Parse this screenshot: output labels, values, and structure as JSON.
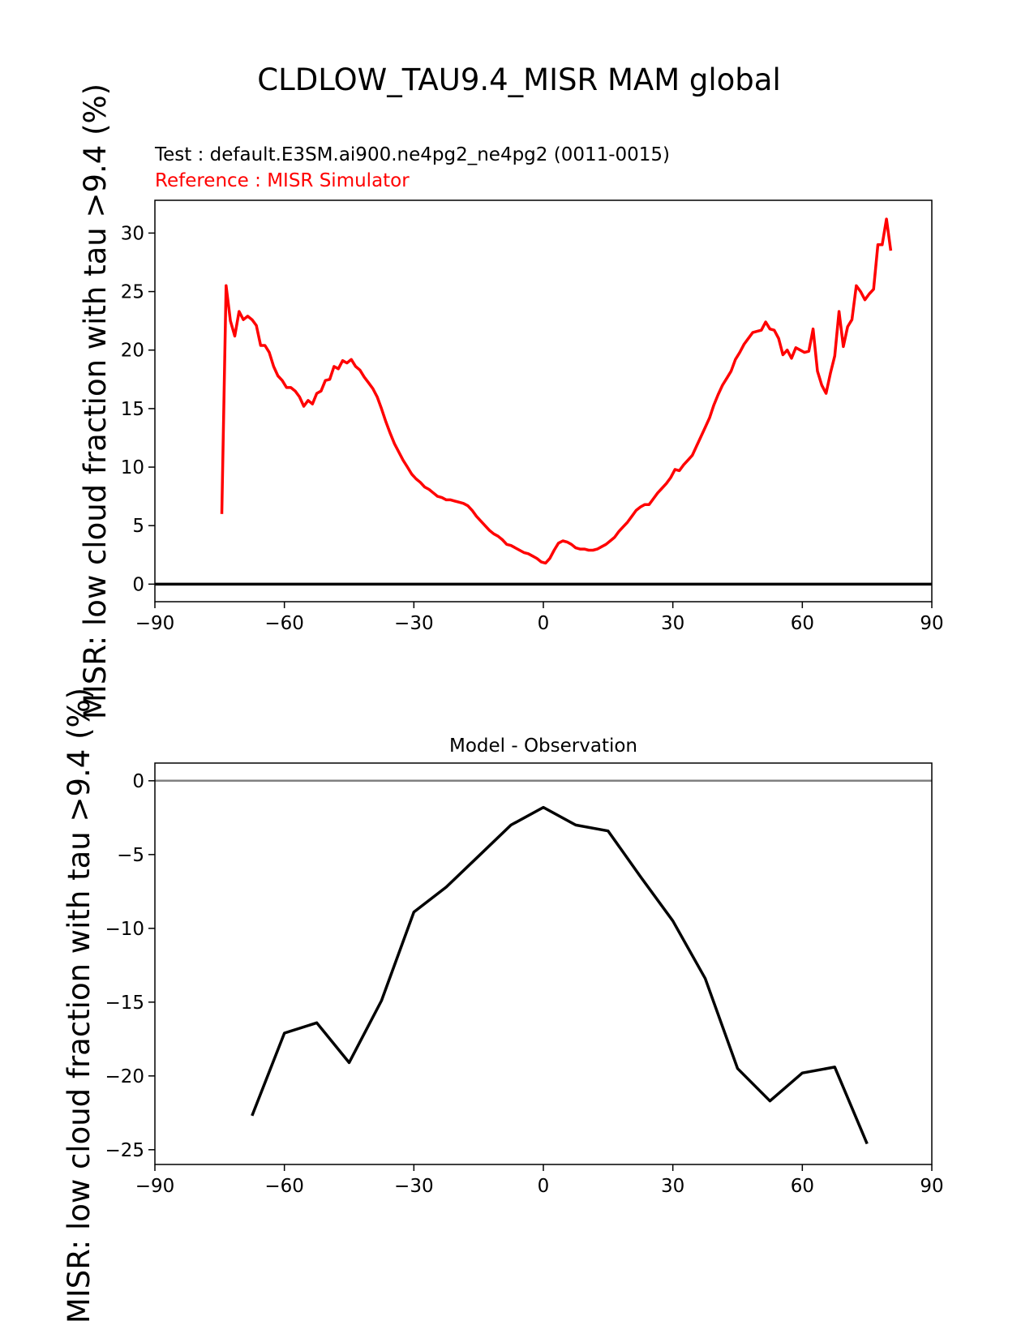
{
  "figure_title": "CLDLOW_TAU9.4_MISR MAM global",
  "test_label": "Test : default.E3SM.ai900.ne4pg2_ne4pg2 (0011-0015)",
  "reference_label": "Reference : MISR Simulator",
  "colors": {
    "reference": "#ff0000",
    "difference": "#000000",
    "zero_line_top": "#000000",
    "zero_line_bottom": "#808080"
  },
  "chart_data": [
    {
      "type": "line",
      "title": "",
      "ylabel": "MISR: low cloud fraction with tau >9.4 (%)",
      "xlabel": "",
      "xlim": [
        -90,
        90
      ],
      "ylim": [
        -1.5,
        32.8
      ],
      "xticks": [
        -90,
        -60,
        -30,
        0,
        30,
        60,
        90
      ],
      "xtick_labels": [
        "−90",
        "−60",
        "−30",
        "0",
        "30",
        "60",
        "90"
      ],
      "yticks": [
        0,
        5,
        10,
        15,
        20,
        25,
        30
      ],
      "ytick_labels": [
        "0",
        "5",
        "10",
        "15",
        "20",
        "25",
        "30"
      ],
      "series": [
        {
          "name": "Reference : MISR Simulator",
          "color": "#ff0000",
          "x": [
            -74.5,
            -73.5,
            -72.5,
            -71.5,
            -70.5,
            -69.5,
            -68.5,
            -67.5,
            -66.5,
            -65.5,
            -64.5,
            -63.5,
            -62.5,
            -61.5,
            -60.5,
            -59.5,
            -58.5,
            -57.5,
            -56.5,
            -55.5,
            -54.5,
            -53.5,
            -52.5,
            -51.5,
            -50.5,
            -49.5,
            -48.5,
            -47.5,
            -46.5,
            -45.5,
            -44.5,
            -43.5,
            -42.5,
            -41.5,
            -40.5,
            -39.5,
            -38.5,
            -37.5,
            -36.5,
            -35.5,
            -34.5,
            -33.5,
            -32.5,
            -31.5,
            -30.5,
            -29.5,
            -28.5,
            -27.5,
            -26.5,
            -25.5,
            -24.5,
            -23.5,
            -22.5,
            -21.5,
            -20.5,
            -19.5,
            -18.5,
            -17.5,
            -16.5,
            -15.5,
            -14.5,
            -13.5,
            -12.5,
            -11.5,
            -10.5,
            -9.5,
            -8.5,
            -7.5,
            -6.5,
            -5.5,
            -4.5,
            -3.5,
            -2.5,
            -1.5,
            -0.5,
            0.5,
            1.5,
            2.5,
            3.5,
            4.5,
            5.5,
            6.5,
            7.5,
            8.5,
            9.5,
            10.5,
            11.5,
            12.5,
            13.5,
            14.5,
            15.5,
            16.5,
            17.5,
            18.5,
            19.5,
            20.5,
            21.5,
            22.5,
            23.5,
            24.5,
            25.5,
            26.5,
            27.5,
            28.5,
            29.5,
            30.5,
            31.5,
            32.5,
            33.5,
            34.5,
            35.5,
            36.5,
            37.5,
            38.5,
            39.5,
            40.5,
            41.5,
            42.5,
            43.5,
            44.5,
            45.5,
            46.5,
            47.5,
            48.5,
            49.5,
            50.5,
            51.5,
            52.5,
            53.5,
            54.5,
            55.5,
            56.5,
            57.5,
            58.5,
            59.5,
            60.5,
            61.5,
            62.5,
            63.5,
            64.5,
            65.5,
            66.5,
            67.5,
            68.5,
            69.5,
            70.5,
            71.5,
            72.5,
            73.5,
            74.5,
            75.5,
            76.5,
            77.5,
            78.5,
            79.5,
            80.5
          ],
          "values": [
            6.0,
            25.5,
            22.5,
            21.2,
            23.3,
            22.6,
            22.9,
            22.6,
            22.1,
            20.4,
            20.4,
            19.8,
            18.6,
            17.8,
            17.4,
            16.8,
            16.8,
            16.5,
            16.0,
            15.2,
            15.7,
            15.4,
            16.3,
            16.5,
            17.4,
            17.5,
            18.6,
            18.4,
            19.1,
            18.9,
            19.2,
            18.6,
            18.3,
            17.7,
            17.2,
            16.7,
            16.0,
            15.0,
            13.9,
            12.9,
            12.0,
            11.3,
            10.6,
            10.0,
            9.4,
            9.0,
            8.7,
            8.3,
            8.1,
            7.8,
            7.5,
            7.4,
            7.2,
            7.2,
            7.1,
            7.0,
            6.9,
            6.7,
            6.3,
            5.8,
            5.4,
            5.0,
            4.6,
            4.3,
            4.1,
            3.8,
            3.4,
            3.3,
            3.1,
            2.9,
            2.7,
            2.6,
            2.4,
            2.2,
            1.9,
            1.8,
            2.2,
            2.9,
            3.5,
            3.7,
            3.6,
            3.4,
            3.1,
            3.0,
            3.0,
            2.9,
            2.9,
            3.0,
            3.2,
            3.4,
            3.7,
            4.0,
            4.5,
            4.9,
            5.3,
            5.8,
            6.3,
            6.6,
            6.8,
            6.8,
            7.3,
            7.8,
            8.2,
            8.6,
            9.1,
            9.8,
            9.7,
            10.2,
            10.6,
            11.0,
            11.8,
            12.6,
            13.4,
            14.2,
            15.3,
            16.2,
            17.0,
            17.6,
            18.2,
            19.2,
            19.8,
            20.5,
            21.0,
            21.5,
            21.6,
            21.7,
            22.4,
            21.8,
            21.7,
            21.0,
            19.6,
            20.0,
            19.3,
            20.2,
            20.0,
            19.8,
            19.9,
            21.8,
            18.2,
            17.0,
            16.3,
            18.0,
            19.5,
            23.3,
            20.3,
            22.0,
            22.6,
            25.5,
            25.0,
            24.3,
            24.8,
            25.2,
            29.0,
            29.0,
            31.2,
            28.5
          ]
        },
        {
          "name": "zero line",
          "color": "#000000",
          "x": [
            -90,
            90
          ],
          "values": [
            0,
            0
          ]
        }
      ]
    },
    {
      "type": "line",
      "title": "Model - Observation",
      "ylabel": "MISR: low cloud fraction with tau >9.4 (%)",
      "xlabel": "",
      "xlim": [
        -90,
        90
      ],
      "ylim": [
        -26.0,
        1.2
      ],
      "xticks": [
        -90,
        -60,
        -30,
        0,
        30,
        60,
        90
      ],
      "xtick_labels": [
        "−90",
        "−60",
        "−30",
        "0",
        "30",
        "60",
        "90"
      ],
      "yticks": [
        0,
        -5,
        -10,
        -15,
        -20,
        -25
      ],
      "ytick_labels": [
        "0",
        "−5",
        "−10",
        "−15",
        "−20",
        "−25"
      ],
      "series": [
        {
          "name": "Model - Observation",
          "color": "#000000",
          "x": [
            -67.5,
            -60,
            -52.5,
            -45,
            -37.5,
            -30,
            -22.5,
            -15,
            -7.5,
            0,
            7.5,
            15,
            22.5,
            30,
            37.5,
            45,
            52.5,
            60,
            67.5,
            75
          ],
          "values": [
            -22.7,
            -17.1,
            -16.4,
            -19.1,
            -14.9,
            -8.9,
            -7.2,
            -5.1,
            -3.0,
            -1.8,
            -3.0,
            -3.4,
            -6.5,
            -9.5,
            -13.4,
            -19.5,
            -21.7,
            -19.8,
            -19.4,
            -24.6
          ]
        },
        {
          "name": "zero line",
          "color": "#808080",
          "x": [
            -90,
            90
          ],
          "values": [
            0,
            0
          ]
        }
      ]
    }
  ]
}
